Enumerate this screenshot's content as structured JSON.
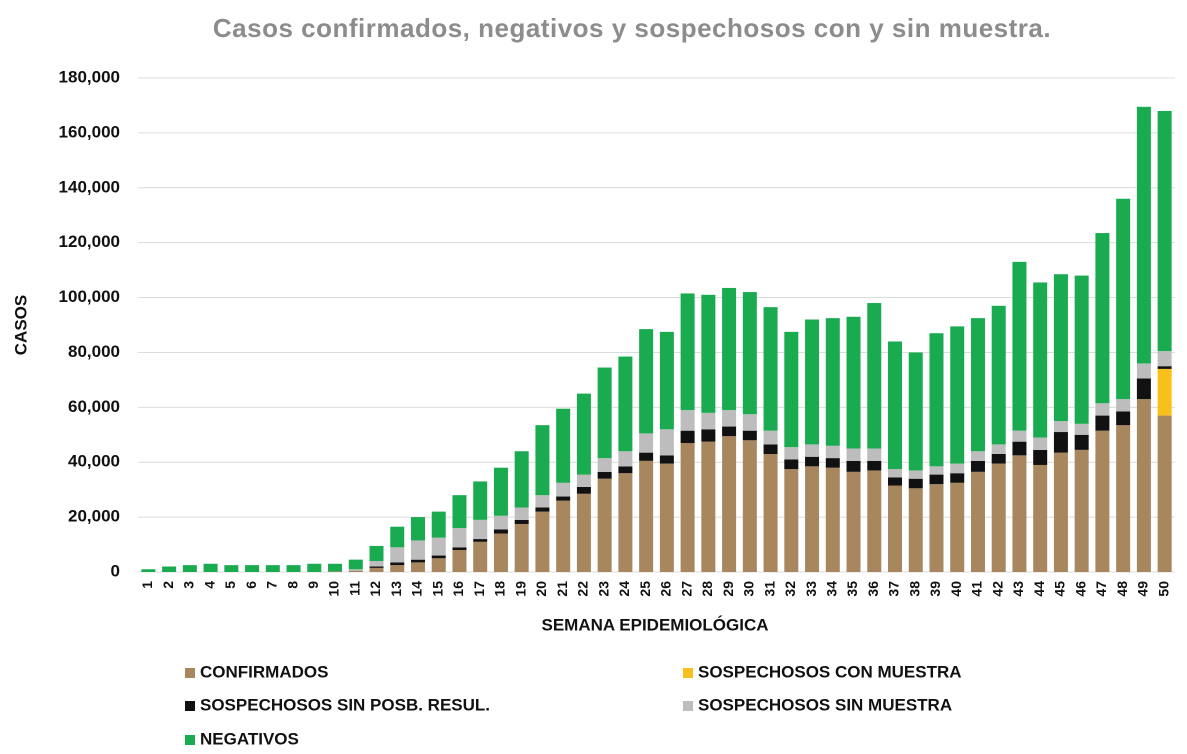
{
  "chart_data": {
    "type": "stacked_bar",
    "title": "Casos confirmados, negativos y sospechosos con y sin muestra.",
    "x_label": "SEMANA EPIDEMIOLÓGICA",
    "y_label": "CASOS",
    "categories": [
      "1",
      "2",
      "3",
      "4",
      "5",
      "6",
      "7",
      "8",
      "9",
      "10",
      "11",
      "12",
      "13",
      "14",
      "15",
      "16",
      "17",
      "18",
      "19",
      "20",
      "21",
      "22",
      "23",
      "24",
      "25",
      "26",
      "27",
      "28",
      "29",
      "30",
      "31",
      "32",
      "33",
      "34",
      "35",
      "36",
      "37",
      "38",
      "39",
      "40",
      "41",
      "42",
      "43",
      "44",
      "45",
      "46",
      "47",
      "48",
      "49",
      "50"
    ],
    "series": [
      {
        "name": "CONFIRMADOS",
        "color": "#a8875e",
        "values": [
          0,
          0,
          0,
          0,
          0,
          0,
          0,
          0,
          0,
          200,
          500,
          1500,
          2500,
          3500,
          5000,
          8000,
          11000,
          14000,
          17500,
          22000,
          26000,
          28500,
          34000,
          36000,
          40500,
          39500,
          47000,
          47500,
          49500,
          48000,
          43000,
          37500,
          38500,
          38000,
          36500,
          37000,
          31500,
          30500,
          32000,
          32500,
          36500,
          39500,
          42500,
          39000,
          43500,
          44500,
          51500,
          53500,
          63000,
          57000
        ]
      },
      {
        "name": "SOSPECHOSOS CON MUESTRA",
        "color": "#f7c01b",
        "values": [
          0,
          0,
          0,
          0,
          0,
          0,
          0,
          0,
          0,
          0,
          0,
          0,
          0,
          0,
          0,
          0,
          0,
          0,
          0,
          0,
          0,
          0,
          0,
          0,
          0,
          0,
          0,
          0,
          0,
          0,
          0,
          0,
          0,
          0,
          0,
          0,
          0,
          0,
          0,
          0,
          0,
          0,
          0,
          0,
          0,
          0,
          0,
          0,
          0,
          17000
        ]
      },
      {
        "name": "SOSPECHOSOS SIN POSB. RESUL.",
        "color": "#111111",
        "values": [
          0,
          0,
          0,
          0,
          0,
          0,
          0,
          0,
          0,
          0,
          0,
          500,
          1000,
          1000,
          1000,
          1000,
          1000,
          1500,
          1500,
          1500,
          1500,
          2500,
          2500,
          2500,
          3000,
          3000,
          4500,
          4500,
          3500,
          3500,
          3500,
          3500,
          3500,
          3500,
          4000,
          3500,
          3000,
          3500,
          3500,
          3500,
          4000,
          3500,
          5000,
          5500,
          7500,
          5500,
          5500,
          5000,
          7500,
          1000
        ]
      },
      {
        "name": "SOSPECHOSOS SIN MUESTRA",
        "color": "#bdbdbd",
        "values": [
          0,
          0,
          0,
          0,
          0,
          0,
          0,
          0,
          0,
          0,
          500,
          2000,
          5500,
          7000,
          6500,
          7000,
          7000,
          5000,
          4500,
          4500,
          5000,
          4500,
          5000,
          5500,
          7000,
          9500,
          7500,
          6000,
          6000,
          6000,
          5000,
          4500,
          4500,
          4500,
          4500,
          4500,
          3000,
          3000,
          3000,
          3500,
          3500,
          3500,
          4000,
          4500,
          4000,
          4000,
          4500,
          4500,
          5500,
          5500
        ]
      },
      {
        "name": "NEGATIVOS",
        "color": "#1aaa4f",
        "values": [
          1000,
          2000,
          2500,
          3000,
          2500,
          2500,
          2500,
          2500,
          3000,
          2800,
          3500,
          5500,
          7500,
          8500,
          9500,
          12000,
          14000,
          17500,
          20500,
          25500,
          27000,
          29500,
          33000,
          34500,
          38000,
          35500,
          42500,
          43000,
          44500,
          44500,
          45000,
          42000,
          45500,
          46500,
          48000,
          53000,
          46500,
          43000,
          48500,
          50000,
          48500,
          50500,
          61500,
          56500,
          53500,
          54000,
          62000,
          73000,
          93500,
          87500
        ]
      }
    ],
    "ylim": [
      0,
      180000
    ],
    "yticks": [
      0,
      {
        "value": 20000,
        "label": "20,000"
      },
      {
        "value": 40000,
        "label": "40,000"
      },
      {
        "value": 60000,
        "label": "60,000"
      },
      {
        "value": 80000,
        "label": "80,000"
      },
      {
        "value": 100000,
        "label": "100,000"
      },
      {
        "value": 120000,
        "label": "120,000"
      },
      {
        "value": 140000,
        "label": "140,000"
      },
      {
        "value": 160000,
        "label": "160,000"
      },
      {
        "value": 180000,
        "label": "180,000"
      }
    ],
    "grid": true
  }
}
